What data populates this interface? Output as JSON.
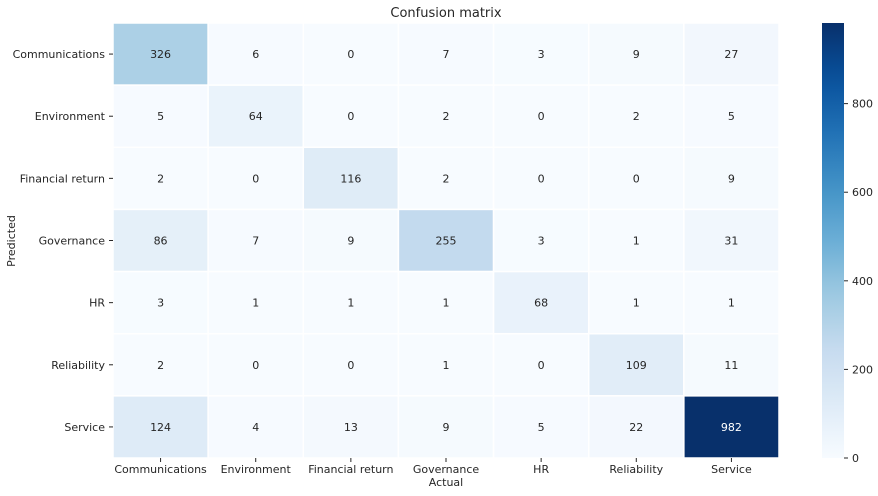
{
  "chart_data": {
    "type": "heatmap",
    "title": "Confusion matrix",
    "xlabel": "Actual",
    "ylabel": "Predicted",
    "x_categories": [
      "Communications",
      "Environment",
      "Financial return",
      "Governance",
      "HR",
      "Reliability",
      "Service"
    ],
    "y_categories": [
      "Communications",
      "Environment",
      "Financial return",
      "Governance",
      "HR",
      "Reliability",
      "Service"
    ],
    "values": [
      [
        326,
        6,
        0,
        7,
        3,
        9,
        27
      ],
      [
        5,
        64,
        0,
        2,
        0,
        2,
        5
      ],
      [
        2,
        0,
        116,
        2,
        0,
        0,
        9
      ],
      [
        86,
        7,
        9,
        255,
        3,
        1,
        31
      ],
      [
        3,
        1,
        1,
        1,
        68,
        1,
        1
      ],
      [
        2,
        0,
        0,
        1,
        0,
        109,
        11
      ],
      [
        124,
        4,
        13,
        9,
        5,
        22,
        982
      ]
    ],
    "colormap": "Blues",
    "color_range": [
      0,
      982
    ],
    "colorbar": {
      "ticks": [
        0,
        200,
        400,
        600,
        800
      ],
      "tick_labels": [
        "0",
        "200",
        "400",
        "600",
        "800"
      ]
    },
    "grid": false,
    "cell_separator_color": "#ffffff"
  }
}
